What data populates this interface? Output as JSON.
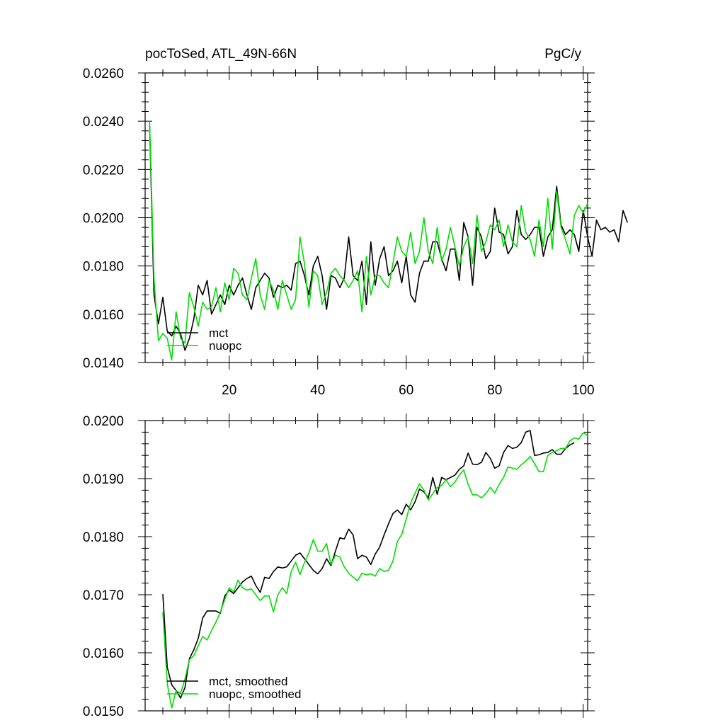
{
  "colors": {
    "mct": "#000000",
    "nuopc": "#00dd00"
  },
  "chart_data": [
    {
      "type": "line",
      "title": "pocToSed, ATL_49N-66N",
      "units_label": "PgC/y",
      "xlim": [
        1,
        101
      ],
      "ylim": [
        0.014,
        0.026
      ],
      "x_ticks": [
        20,
        40,
        60,
        80,
        100
      ],
      "x_tick_labels": [
        "20",
        "40",
        "60",
        "80",
        "100"
      ],
      "y_ticks": [
        0.014,
        0.016,
        0.018,
        0.02,
        0.022,
        0.024,
        0.026
      ],
      "y_tick_labels": [
        "0.0140",
        "0.0160",
        "0.0180",
        "0.0200",
        "0.0220",
        "0.0240",
        "0.0260"
      ],
      "legend_position": "bottom-left",
      "series": [
        {
          "name": "mct",
          "color": "#000000",
          "x_start": 2,
          "values": [
            0.0239,
            0.0168,
            0.0156,
            0.0167,
            0.0153,
            0.0151,
            0.0155,
            0.0152,
            0.0145,
            0.015,
            0.0158,
            0.0172,
            0.0168,
            0.0174,
            0.016,
            0.0164,
            0.0168,
            0.0164,
            0.0172,
            0.0168,
            0.0172,
            0.0175,
            0.0168,
            0.0162,
            0.0171,
            0.0174,
            0.0177,
            0.0175,
            0.0167,
            0.0172,
            0.0171,
            0.0172,
            0.017,
            0.0181,
            0.0182,
            0.0176,
            0.0168,
            0.018,
            0.0184,
            0.0176,
            0.0162,
            0.0176,
            0.0175,
            0.0171,
            0.0175,
            0.0192,
            0.0176,
            0.0174,
            0.0182,
            0.0164,
            0.019,
            0.0172,
            0.0183,
            0.0188,
            0.0176,
            0.0178,
            0.0182,
            0.0173,
            0.0184,
            0.0168,
            0.0165,
            0.0177,
            0.0182,
            0.0182,
            0.019,
            0.019,
            0.0183,
            0.0178,
            0.0187,
            0.0187,
            0.0174,
            0.0198,
            0.0192,
            0.0172,
            0.0196,
            0.0192,
            0.0183,
            0.0186,
            0.0204,
            0.0194,
            0.0193,
            0.0185,
            0.0188,
            0.0203,
            0.0193,
            0.0191,
            0.0193,
            0.0196,
            0.0196,
            0.0184,
            0.0192,
            0.0195,
            0.0213,
            0.0197,
            0.0193,
            0.0195,
            0.0193,
            0.0186,
            0.0203,
            0.0192,
            0.0184,
            0.0199,
            0.0195,
            0.0196,
            0.0194,
            0.0195,
            0.019,
            0.0203,
            0.0198
          ]
        },
        {
          "name": "nuopc",
          "color": "#00dd00",
          "x_start": 2,
          "values": [
            0.024,
            0.0175,
            0.0149,
            0.0152,
            0.015,
            0.0141,
            0.0161,
            0.015,
            0.0148,
            0.0169,
            0.0163,
            0.0155,
            0.0165,
            0.0162,
            0.0163,
            0.0171,
            0.0161,
            0.0173,
            0.0166,
            0.0179,
            0.0177,
            0.0168,
            0.0166,
            0.0175,
            0.0183,
            0.0168,
            0.0162,
            0.0174,
            0.017,
            0.0162,
            0.0174,
            0.0168,
            0.0162,
            0.0166,
            0.0192,
            0.0181,
            0.0163,
            0.0178,
            0.0176,
            0.0164,
            0.0169,
            0.0177,
            0.0179,
            0.0176,
            0.0174,
            0.0171,
            0.0174,
            0.0178,
            0.0161,
            0.0184,
            0.0168,
            0.0176,
            0.0176,
            0.0173,
            0.0171,
            0.0181,
            0.0192,
            0.0186,
            0.0184,
            0.0194,
            0.0181,
            0.0186,
            0.02,
            0.0186,
            0.0181,
            0.0196,
            0.0182,
            0.0187,
            0.0196,
            0.0188,
            0.018,
            0.0188,
            0.0192,
            0.0181,
            0.0201,
            0.0186,
            0.019,
            0.0197,
            0.0195,
            0.0199,
            0.0188,
            0.0197,
            0.019,
            0.0188,
            0.0205,
            0.0194,
            0.0191,
            0.0184,
            0.0199,
            0.0188,
            0.0208,
            0.0187,
            0.0211,
            0.0196,
            0.0191,
            0.0185,
            0.0201,
            0.0205,
            0.0202,
            0.0206
          ]
        }
      ]
    },
    {
      "type": "line",
      "xlim": [
        1,
        101
      ],
      "ylim": [
        0.015,
        0.02
      ],
      "x_ticks": [
        20,
        40,
        60,
        80,
        100
      ],
      "y_ticks": [
        0.015,
        0.016,
        0.017,
        0.018,
        0.019,
        0.02
      ],
      "y_tick_labels": [
        "0.0150",
        "0.0160",
        "0.0170",
        "0.0180",
        "0.0190",
        "0.0200"
      ],
      "legend_position": "bottom-left",
      "series": [
        {
          "name": "mct, smoothed",
          "color": "#000000",
          "x_start": 5,
          "values": [
            0.01701,
            0.01575,
            0.01545,
            0.01535,
            0.01522,
            0.0154,
            0.0159,
            0.01605,
            0.01625,
            0.0166,
            0.01672,
            0.01672,
            0.01672,
            0.01668,
            0.01698,
            0.01708,
            0.01702,
            0.01712,
            0.01722,
            0.01728,
            0.01732,
            0.01716,
            0.01704,
            0.0173,
            0.01728,
            0.0174,
            0.01748,
            0.01746,
            0.01748,
            0.01758,
            0.01768,
            0.01772,
            0.01762,
            0.01752,
            0.01742,
            0.01736,
            0.01745,
            0.01762,
            0.0175,
            0.01775,
            0.01798,
            0.01796,
            0.01813,
            0.01803,
            0.01762,
            0.01768,
            0.01765,
            0.01752,
            0.0177,
            0.01782,
            0.01803,
            0.01822,
            0.0184,
            0.01846,
            0.01838,
            0.01856,
            0.01846,
            0.0186,
            0.01882,
            0.01877,
            0.01867,
            0.01902,
            0.01873,
            0.01902,
            0.01898,
            0.01902,
            0.01906,
            0.01916,
            0.01922,
            0.01944,
            0.01925,
            0.01924,
            0.01928,
            0.01945,
            0.01935,
            0.01918,
            0.01922,
            0.01945,
            0.01957,
            0.01952,
            0.01954,
            0.01962,
            0.0198,
            0.01983,
            0.0194,
            0.01941,
            0.01944,
            0.01945,
            0.0195,
            0.01942,
            0.01942,
            0.01952,
            0.01958,
            0.01962
          ]
        },
        {
          "name": "nuopc, smoothed",
          "color": "#00dd00",
          "x_start": 5,
          "values": [
            0.0167,
            0.01547,
            0.01505,
            0.01535,
            0.0153,
            0.01555,
            0.01588,
            0.01595,
            0.01612,
            0.01628,
            0.01622,
            0.01638,
            0.01653,
            0.0167,
            0.01692,
            0.01712,
            0.01705,
            0.01725,
            0.01712,
            0.01708,
            0.0171,
            0.017,
            0.0169,
            0.01698,
            0.01698,
            0.0167,
            0.017,
            0.01712,
            0.01702,
            0.0174,
            0.01756,
            0.01735,
            0.01755,
            0.01772,
            0.01795,
            0.01775,
            0.01775,
            0.01788,
            0.01752,
            0.01768,
            0.01765,
            0.01748,
            0.01737,
            0.0173,
            0.01724,
            0.01737,
            0.01734,
            0.01736,
            0.01732,
            0.01745,
            0.0174,
            0.01742,
            0.01758,
            0.01792,
            0.01804,
            0.0183,
            0.01858,
            0.01875,
            0.01891,
            0.0188,
            0.01863,
            0.01874,
            0.01885,
            0.01888,
            0.01898,
            0.01886,
            0.01894,
            0.01906,
            0.01915,
            0.0189,
            0.01872,
            0.01872,
            0.01867,
            0.01874,
            0.01885,
            0.01875,
            0.0189,
            0.01902,
            0.0192,
            0.01918,
            0.01916,
            0.01924,
            0.0193,
            0.01938,
            0.01926,
            0.01912,
            0.01912,
            0.0194,
            0.01945,
            0.01948,
            0.01952,
            0.01952,
            0.01965,
            0.0197,
            0.01968,
            0.01979,
            0.01974
          ]
        }
      ]
    }
  ]
}
